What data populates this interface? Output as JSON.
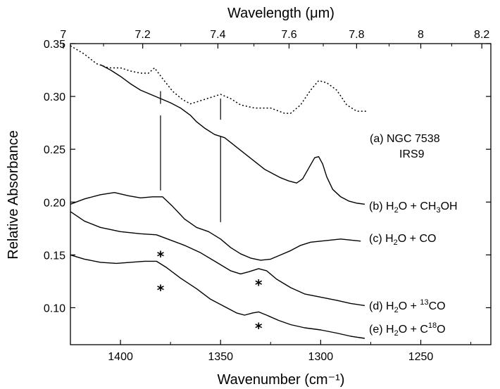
{
  "chart_data": {
    "type": "line",
    "xlabel": "Wavenumber (cm⁻¹)",
    "x2label": "Wavelength (μm)",
    "ylabel": "Relative Absorbance",
    "xlim": [
      1425,
      1215
    ],
    "ylim": [
      0.065,
      0.35
    ],
    "x_ticks": [
      1400,
      1350,
      1300,
      1250
    ],
    "y_ticks": [
      0.1,
      0.15,
      0.2,
      0.25,
      0.3,
      0.35
    ],
    "y_tick_labels": [
      "0.10",
      "0.15",
      "0.20",
      "0.25",
      "0.30",
      "0.35"
    ],
    "x2_ticks": [
      7,
      7.2,
      7.4,
      7.6,
      7.8,
      8,
      8.2
    ],
    "x2_tick_labels": [
      "7",
      "7.2",
      "7.4",
      "7.6",
      "7.8",
      "8",
      "8.2"
    ],
    "series": [
      {
        "id": "a",
        "style": "dotted",
        "labels": [
          "(a) NGC 7538",
          "IRS9"
        ],
        "points": [
          [
            1425,
            0.348
          ],
          [
            1418,
            0.34
          ],
          [
            1412,
            0.331
          ],
          [
            1406,
            0.327
          ],
          [
            1400,
            0.327
          ],
          [
            1395,
            0.324
          ],
          [
            1390,
            0.322
          ],
          [
            1386,
            0.322
          ],
          [
            1383,
            0.327
          ],
          [
            1379,
            0.317
          ],
          [
            1374,
            0.305
          ],
          [
            1369,
            0.297
          ],
          [
            1365,
            0.293
          ],
          [
            1360,
            0.296
          ],
          [
            1355,
            0.299
          ],
          [
            1350,
            0.302
          ],
          [
            1345,
            0.298
          ],
          [
            1340,
            0.292
          ],
          [
            1333,
            0.289
          ],
          [
            1325,
            0.289
          ],
          [
            1318,
            0.284
          ],
          [
            1315,
            0.284
          ],
          [
            1310,
            0.292
          ],
          [
            1305,
            0.306
          ],
          [
            1301,
            0.315
          ],
          [
            1297,
            0.313
          ],
          [
            1292,
            0.306
          ],
          [
            1287,
            0.292
          ],
          [
            1282,
            0.286
          ],
          [
            1277,
            0.286
          ]
        ]
      },
      {
        "id": "b",
        "style": "solid",
        "label_prefix": "(b) H",
        "label_parts": [
          "(b) H",
          "2",
          "O + CH",
          "3",
          "OH"
        ],
        "points": [
          [
            1410,
            0.33
          ],
          [
            1405,
            0.325
          ],
          [
            1400,
            0.319
          ],
          [
            1395,
            0.312
          ],
          [
            1390,
            0.306
          ],
          [
            1385,
            0.302
          ],
          [
            1380,
            0.298
          ],
          [
            1375,
            0.294
          ],
          [
            1370,
            0.289
          ],
          [
            1365,
            0.282
          ],
          [
            1362,
            0.276
          ],
          [
            1358,
            0.27
          ],
          [
            1353,
            0.264
          ],
          [
            1348,
            0.261
          ],
          [
            1344,
            0.255
          ],
          [
            1340,
            0.249
          ],
          [
            1336,
            0.243
          ],
          [
            1332,
            0.237
          ],
          [
            1328,
            0.231
          ],
          [
            1324,
            0.227
          ],
          [
            1320,
            0.223
          ],
          [
            1316,
            0.22
          ],
          [
            1312,
            0.218
          ],
          [
            1309,
            0.222
          ],
          [
            1306,
            0.232
          ],
          [
            1303,
            0.242
          ],
          [
            1301,
            0.243
          ],
          [
            1299,
            0.236
          ],
          [
            1297,
            0.224
          ],
          [
            1294,
            0.212
          ],
          [
            1290,
            0.205
          ],
          [
            1286,
            0.201
          ],
          [
            1282,
            0.199
          ],
          [
            1278,
            0.198
          ]
        ]
      },
      {
        "id": "c",
        "style": "solid",
        "label_parts": [
          "(c) H",
          "2",
          "O + CO"
        ],
        "points": [
          [
            1425,
            0.198
          ],
          [
            1418,
            0.203
          ],
          [
            1410,
            0.207
          ],
          [
            1403,
            0.209
          ],
          [
            1396,
            0.206
          ],
          [
            1390,
            0.204
          ],
          [
            1384,
            0.205
          ],
          [
            1379,
            0.205
          ],
          [
            1374,
            0.196
          ],
          [
            1368,
            0.184
          ],
          [
            1362,
            0.176
          ],
          [
            1356,
            0.172
          ],
          [
            1350,
            0.165
          ],
          [
            1345,
            0.157
          ],
          [
            1340,
            0.151
          ],
          [
            1335,
            0.147
          ],
          [
            1330,
            0.145
          ],
          [
            1325,
            0.146
          ],
          [
            1320,
            0.15
          ],
          [
            1315,
            0.154
          ],
          [
            1310,
            0.159
          ],
          [
            1305,
            0.162
          ],
          [
            1300,
            0.163
          ],
          [
            1295,
            0.164
          ],
          [
            1290,
            0.165
          ],
          [
            1285,
            0.164
          ],
          [
            1280,
            0.163
          ]
        ]
      },
      {
        "id": "d",
        "style": "solid",
        "label_parts": [
          "(d) H",
          "2",
          "O + ",
          "13",
          "CO"
        ],
        "points": [
          [
            1425,
            0.191
          ],
          [
            1418,
            0.182
          ],
          [
            1410,
            0.176
          ],
          [
            1400,
            0.172
          ],
          [
            1390,
            0.17
          ],
          [
            1382,
            0.169
          ],
          [
            1375,
            0.164
          ],
          [
            1368,
            0.159
          ],
          [
            1360,
            0.152
          ],
          [
            1352,
            0.143
          ],
          [
            1345,
            0.135
          ],
          [
            1340,
            0.132
          ],
          [
            1336,
            0.134
          ],
          [
            1331,
            0.137
          ],
          [
            1327,
            0.135
          ],
          [
            1322,
            0.127
          ],
          [
            1315,
            0.119
          ],
          [
            1308,
            0.113
          ],
          [
            1300,
            0.11
          ],
          [
            1292,
            0.107
          ],
          [
            1285,
            0.104
          ],
          [
            1278,
            0.102
          ]
        ]
      },
      {
        "id": "e",
        "style": "solid",
        "label_parts": [
          "(e) H",
          "2",
          "O + C",
          "18",
          "O"
        ],
        "points": [
          [
            1425,
            0.15
          ],
          [
            1418,
            0.146
          ],
          [
            1410,
            0.143
          ],
          [
            1402,
            0.142
          ],
          [
            1395,
            0.143
          ],
          [
            1388,
            0.144
          ],
          [
            1382,
            0.144
          ],
          [
            1377,
            0.138
          ],
          [
            1370,
            0.128
          ],
          [
            1362,
            0.118
          ],
          [
            1355,
            0.108
          ],
          [
            1348,
            0.101
          ],
          [
            1342,
            0.095
          ],
          [
            1338,
            0.093
          ],
          [
            1334,
            0.095
          ],
          [
            1331,
            0.096
          ],
          [
            1327,
            0.093
          ],
          [
            1321,
            0.088
          ],
          [
            1315,
            0.084
          ],
          [
            1308,
            0.081
          ],
          [
            1300,
            0.079
          ],
          [
            1292,
            0.076
          ],
          [
            1285,
            0.073
          ],
          [
            1278,
            0.071
          ]
        ]
      }
    ],
    "vertical_markers": [
      {
        "x": 1380,
        "y_from": 0.305,
        "y_to": 0.293
      },
      {
        "x": 1380,
        "y_from": 0.282,
        "y_to": 0.211
      },
      {
        "x": 1350,
        "y_from": 0.298,
        "y_to": 0.278
      },
      {
        "x": 1350,
        "y_from": 0.262,
        "y_to": 0.181
      }
    ],
    "asterisks": [
      {
        "x": 1380,
        "y": 0.152
      },
      {
        "x": 1380,
        "y": 0.12
      },
      {
        "x": 1331,
        "y": 0.125
      },
      {
        "x": 1331,
        "y": 0.084
      }
    ],
    "annotation_text": "*"
  }
}
